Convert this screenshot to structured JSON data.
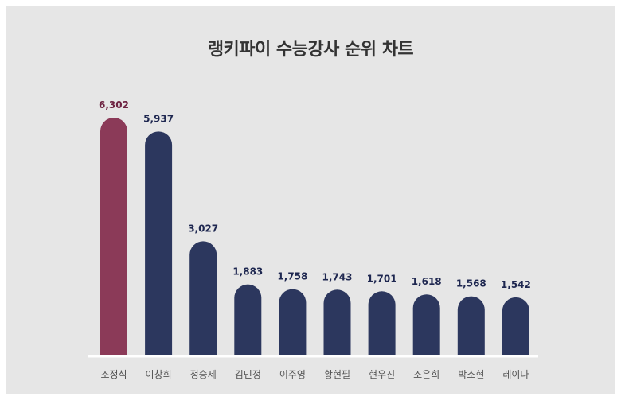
{
  "chart_data": {
    "type": "bar",
    "title": "랭키파이 수능강사 순위 차트",
    "xlabel": "",
    "ylabel": "",
    "ylim": [
      0,
      6302
    ],
    "grid": false,
    "legend": "none",
    "categories": [
      "조정식",
      "이창희",
      "정승제",
      "김민정",
      "이주영",
      "황현필",
      "현우진",
      "조은희",
      "박소현",
      "레이나"
    ],
    "values": [
      6302,
      5937,
      3027,
      1883,
      1758,
      1743,
      1701,
      1618,
      1568,
      1542
    ],
    "value_labels": [
      "6,302",
      "5,937",
      "3,027",
      "1,883",
      "1,758",
      "1,743",
      "1,701",
      "1,618",
      "1,568",
      "1,542"
    ],
    "highlight_index": 0,
    "colors": {
      "highlight": "#8b3a58",
      "bar": "#2c375e",
      "highlight_label": "#6e2342",
      "label": "#1e2750",
      "baseline": "#ffffff",
      "background": "#e6e6e6"
    }
  }
}
